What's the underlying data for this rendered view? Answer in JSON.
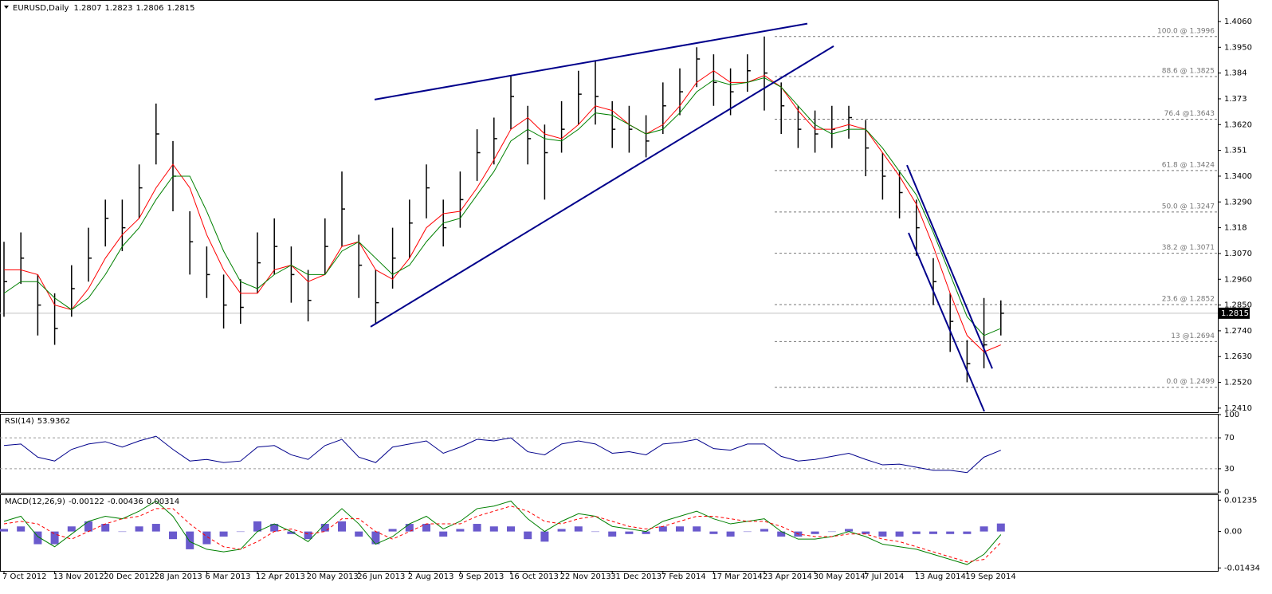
{
  "chart_data": [
    {
      "type": "ohlc",
      "title": "EURUSD,Daily",
      "quote": [
        1.2807,
        1.2823,
        1.2806,
        1.2815
      ],
      "categories": [
        "7 Oct 2012",
        null,
        null,
        "13 Nov 2012",
        null,
        null,
        "20 Dec 2012",
        null,
        null,
        "28 Jan 2013",
        null,
        null,
        "6 Mar 2013",
        null,
        null,
        "12 Apr 2013",
        null,
        null,
        "20 May 2013",
        null,
        null,
        "26 Jun 2013",
        null,
        null,
        "2 Aug 2013",
        null,
        null,
        "9 Sep 2013",
        null,
        null,
        "16 Oct 2013",
        null,
        null,
        "22 Nov 2013",
        null,
        null,
        "31 Dec 2013",
        null,
        null,
        "7 Feb 2014",
        null,
        null,
        "17 Mar 2014",
        null,
        null,
        "23 Apr 2014",
        null,
        null,
        "30 May 2014",
        null,
        null,
        "7 Jul 2014",
        null,
        null,
        "13 Aug 2014",
        null,
        null,
        "19 Sep 2014",
        null,
        null
      ],
      "high": [
        1.312,
        1.316,
        1.298,
        1.29,
        1.302,
        1.318,
        1.33,
        1.33,
        1.345,
        1.371,
        1.355,
        1.325,
        1.31,
        1.298,
        1.296,
        1.316,
        1.322,
        1.31,
        1.3,
        1.322,
        1.342,
        1.315,
        1.3,
        1.318,
        1.33,
        1.345,
        1.33,
        1.342,
        1.36,
        1.365,
        1.383,
        1.37,
        1.362,
        1.372,
        1.385,
        1.389,
        1.372,
        1.37,
        1.366,
        1.38,
        1.386,
        1.395,
        1.392,
        1.386,
        1.392,
        1.3996,
        1.38,
        1.37,
        1.368,
        1.37,
        1.37,
        1.364,
        1.35,
        1.342,
        1.33,
        1.305,
        1.29,
        1.27,
        1.288,
        1.287
      ],
      "low": [
        1.28,
        1.294,
        1.272,
        1.268,
        1.28,
        1.295,
        1.31,
        1.308,
        1.322,
        1.345,
        1.325,
        1.298,
        1.288,
        1.275,
        1.277,
        1.29,
        1.298,
        1.286,
        1.278,
        1.298,
        1.31,
        1.288,
        1.277,
        1.292,
        1.305,
        1.322,
        1.31,
        1.318,
        1.338,
        1.345,
        1.36,
        1.345,
        1.33,
        1.35,
        1.362,
        1.362,
        1.352,
        1.35,
        1.348,
        1.358,
        1.366,
        1.378,
        1.37,
        1.366,
        1.376,
        1.368,
        1.358,
        1.352,
        1.35,
        1.352,
        1.356,
        1.34,
        1.33,
        1.322,
        1.306,
        1.285,
        1.265,
        1.252,
        1.258,
        1.272
      ],
      "close": [
        1.295,
        1.305,
        1.285,
        1.275,
        1.292,
        1.305,
        1.322,
        1.318,
        1.335,
        1.358,
        1.34,
        1.312,
        1.298,
        1.285,
        1.284,
        1.303,
        1.31,
        1.298,
        1.287,
        1.31,
        1.326,
        1.302,
        1.286,
        1.305,
        1.32,
        1.335,
        1.318,
        1.33,
        1.35,
        1.356,
        1.374,
        1.356,
        1.35,
        1.36,
        1.375,
        1.374,
        1.36,
        1.36,
        1.355,
        1.37,
        1.376,
        1.39,
        1.38,
        1.376,
        1.385,
        1.384,
        1.37,
        1.36,
        1.358,
        1.36,
        1.365,
        1.352,
        1.34,
        1.333,
        1.318,
        1.295,
        1.278,
        1.26,
        1.268,
        1.2815
      ],
      "series": [
        {
          "color": "#ff0000",
          "values": [
            1.3,
            1.3,
            1.298,
            1.285,
            1.283,
            1.292,
            1.305,
            1.315,
            1.322,
            1.335,
            1.345,
            1.335,
            1.315,
            1.3,
            1.29,
            1.29,
            1.3,
            1.302,
            1.295,
            1.298,
            1.31,
            1.312,
            1.3,
            1.296,
            1.305,
            1.318,
            1.324,
            1.325,
            1.335,
            1.347,
            1.36,
            1.365,
            1.358,
            1.356,
            1.362,
            1.37,
            1.368,
            1.362,
            1.358,
            1.362,
            1.37,
            1.38,
            1.385,
            1.38,
            1.38,
            1.383,
            1.378,
            1.368,
            1.36,
            1.36,
            1.362,
            1.36,
            1.35,
            1.34,
            1.328,
            1.31,
            1.29,
            1.272,
            1.265,
            1.268
          ]
        },
        {
          "color": "#008000",
          "values": [
            1.29,
            1.295,
            1.295,
            1.288,
            1.283,
            1.288,
            1.298,
            1.31,
            1.318,
            1.33,
            1.34,
            1.34,
            1.325,
            1.308,
            1.295,
            1.292,
            1.298,
            1.302,
            1.298,
            1.298,
            1.308,
            1.312,
            1.305,
            1.298,
            1.302,
            1.312,
            1.32,
            1.322,
            1.332,
            1.342,
            1.355,
            1.36,
            1.356,
            1.355,
            1.36,
            1.367,
            1.366,
            1.362,
            1.358,
            1.36,
            1.367,
            1.376,
            1.381,
            1.379,
            1.38,
            1.382,
            1.378,
            1.37,
            1.362,
            1.358,
            1.36,
            1.36,
            1.352,
            1.342,
            1.332,
            1.316,
            1.298,
            1.28,
            1.272,
            1.275
          ]
        }
      ],
      "ylim": [
        1.2396,
        1.4145
      ],
      "yticks": [
        {
          "value": 1.406,
          "label": "1.4060"
        },
        {
          "value": 1.395,
          "label": "1.3950"
        },
        1.384,
        1.373,
        {
          "value": 1.362,
          "label": "1.3620"
        },
        1.351,
        {
          "value": 1.34,
          "label": "1.3400"
        },
        {
          "value": 1.329,
          "label": "1.3290"
        },
        1.318,
        {
          "value": 1.307,
          "label": "1.3070"
        },
        {
          "value": 1.296,
          "label": "1.2960"
        },
        {
          "value": 1.285,
          "label": "1.2850"
        },
        {
          "value": 1.274,
          "label": "1.2740"
        },
        {
          "value": 1.263,
          "label": "1.2630"
        },
        {
          "value": 1.252,
          "label": "1.2520"
        },
        {
          "value": 1.241,
          "label": "1.2410"
        }
      ],
      "fib_levels": [
        {
          "label": "100.0 @ 1.3996",
          "value": 1.3996
        },
        {
          "label": "88.6 @ 1.3825",
          "value": 1.3825
        },
        {
          "label": "76.4 @1.3643",
          "value": 1.3643
        },
        {
          "label": "61.8 @ 1.3424",
          "value": 1.3424
        },
        {
          "label": "50.0 @ 1.3247",
          "value": 1.3247
        },
        {
          "label": "38.2 @ 1.3071",
          "value": 1.3071
        },
        {
          "label": "23.6 @ 1.2852",
          "value": 1.2852
        },
        {
          "label": "13 @1.2694",
          "value": 1.2694
        },
        {
          "label": "0.0 @ 1.2499",
          "value": 1.2499
        }
      ],
      "trendlines": [
        {
          "start": 1.3727,
          "end": 1.4051
        },
        {
          "start": 1.2757,
          "end": 1.3955
        },
        {
          "start": 1.3447,
          "end": 1.2579
        },
        {
          "start": 1.3158,
          "end": 1.2396
        }
      ],
      "trend_color": "#00008b"
    },
    {
      "type": "line",
      "title": "RSI(14)",
      "color": "#00008b",
      "values": [
        60,
        62,
        45,
        40,
        55,
        62,
        65,
        58,
        66,
        72,
        55,
        40,
        42,
        38,
        40,
        58,
        60,
        48,
        42,
        60,
        68,
        45,
        38,
        58,
        62,
        66,
        50,
        58,
        68,
        66,
        70,
        52,
        48,
        62,
        66,
        62,
        50,
        52,
        48,
        62,
        64,
        68,
        56,
        54,
        62,
        62,
        46,
        40,
        42,
        46,
        50,
        42,
        35,
        36,
        32,
        28,
        28,
        25,
        45,
        53.9362
      ],
      "ylim": [
        0,
        100
      ],
      "yticks": [
        100,
        70,
        30,
        0
      ],
      "levels": [
        70,
        30
      ]
    },
    {
      "type": "macd",
      "title": "MACD(12,26,9)",
      "series": [
        {
          "color": "#008000",
          "values": [
            0.004,
            0.006,
            -0.002,
            -0.006,
            -0.001,
            0.004,
            0.006,
            0.005,
            0.008,
            0.012,
            0.006,
            -0.004,
            -0.007,
            -0.008,
            -0.007,
            0,
            0.003,
            0,
            -0.004,
            0.003,
            0.009,
            0.003,
            -0.005,
            -0.002,
            0.003,
            0.006,
            0.001,
            0.004,
            0.009,
            0.01,
            0.012,
            0.005,
            0,
            0.004,
            0.007,
            0.006,
            0.002,
            0.001,
            0,
            0.004,
            0.006,
            0.008,
            0.005,
            0.003,
            0.004,
            0.005,
            0,
            -0.003,
            -0.003,
            -0.002,
            0,
            -0.002,
            -0.005,
            -0.006,
            -0.007,
            -0.009,
            -0.011,
            -0.013,
            -0.009,
            -0.00122
          ]
        },
        {
          "color": "#ff0000",
          "values": [
            0.003,
            0.004,
            0.003,
            -0.001,
            -0.003,
            0,
            0.003,
            0.005,
            0.006,
            0.009,
            0.009,
            0.003,
            -0.002,
            -0.006,
            -0.007,
            -0.004,
            0,
            0.001,
            -0.001,
            0,
            0.005,
            0.005,
            0,
            -0.003,
            0,
            0.003,
            0.003,
            0.003,
            0.006,
            0.008,
            0.01,
            0.008,
            0.004,
            0.003,
            0.005,
            0.006,
            0.004,
            0.002,
            0.001,
            0.002,
            0.004,
            0.006,
            0.006,
            0.005,
            0.004,
            0.004,
            0.002,
            -0.001,
            -0.002,
            -0.002,
            -0.001,
            -0.001,
            -0.003,
            -0.004,
            -0.006,
            -0.008,
            -0.01,
            -0.012,
            -0.011,
            -0.00436
          ]
        }
      ],
      "histogram": {
        "color": "#6a5acd",
        "values": [
          0.001,
          0.002,
          -0.005,
          -0.005,
          0.002,
          0.004,
          0.003,
          0,
          0.002,
          0.003,
          -0.003,
          -0.007,
          -0.005,
          -0.002,
          0,
          0.004,
          0.003,
          -0.001,
          -0.003,
          0.003,
          0.004,
          -0.002,
          -0.005,
          0.001,
          0.003,
          0.003,
          -0.002,
          0.001,
          0.003,
          0.002,
          0.002,
          -0.003,
          -0.004,
          0.001,
          0.002,
          0,
          -0.002,
          -0.001,
          -0.001,
          0.002,
          0.002,
          0.002,
          -0.001,
          -0.002,
          0,
          0.001,
          -0.002,
          -0.002,
          -0.001,
          0,
          0.001,
          -0.001,
          -0.002,
          -0.002,
          -0.001,
          -0.001,
          -0.001,
          -0.001,
          0.002,
          0.00314
        ]
      },
      "ylim": [
        -0.0155,
        0.014
      ],
      "yticks": [
        0.01235,
        {
          "value": 0,
          "label": "0.00"
        },
        -0.01434
      ]
    }
  ]
}
